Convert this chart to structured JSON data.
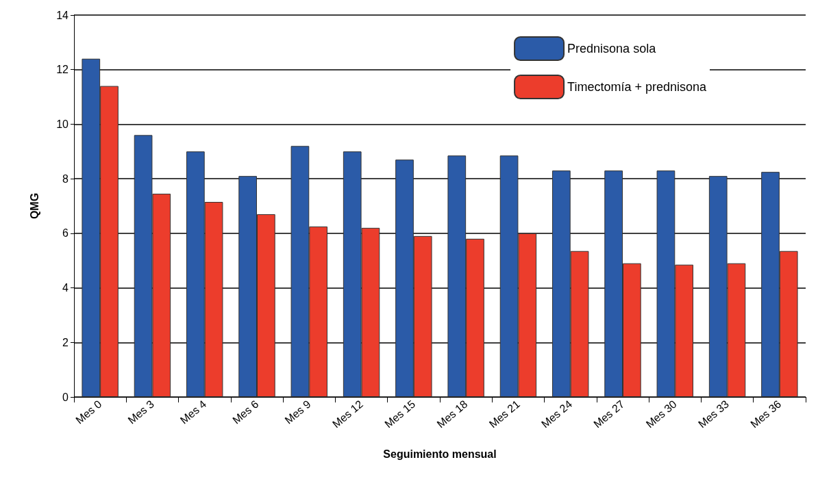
{
  "chart_data": {
    "type": "bar",
    "xlabel": "Seguimiento mensual",
    "ylabel": "QMG",
    "categories": [
      "Mes 0",
      "Mes 3",
      "Mes 4",
      "Mes 6",
      "Mes 9",
      "Mes 12",
      "Mes 15",
      "Mes 18",
      "Mes 21",
      "Mes 24",
      "Mes 27",
      "Mes 30",
      "Mes 33",
      "Mes 36"
    ],
    "series": [
      {
        "name": "Prednisona sola",
        "color": "#2b5ba8",
        "values": [
          12.4,
          9.6,
          9.0,
          8.1,
          9.2,
          9.0,
          8.7,
          8.85,
          8.85,
          8.3,
          8.3,
          8.3,
          8.1,
          8.25
        ]
      },
      {
        "name": "Timectomía + prednisona",
        "color": "#ec3d2c",
        "values": [
          11.4,
          7.45,
          7.15,
          6.7,
          6.25,
          6.2,
          5.9,
          5.8,
          6.0,
          5.35,
          4.9,
          4.85,
          4.9,
          5.35
        ]
      }
    ],
    "ylim": [
      0,
      14
    ],
    "yticks": [
      0,
      2,
      4,
      6,
      8,
      10,
      12,
      14
    ],
    "grid": "y",
    "legend": "top right"
  }
}
